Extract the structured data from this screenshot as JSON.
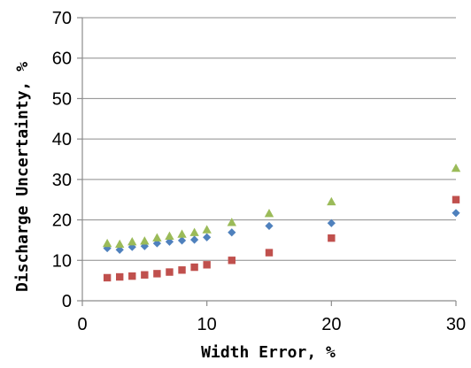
{
  "chart_data": {
    "type": "scatter",
    "title": "",
    "xlabel": "Width Error, %",
    "ylabel": "Discharge Uncertainty, %",
    "xlim": [
      0,
      30
    ],
    "ylim": [
      0,
      70
    ],
    "xticks": [
      0,
      10,
      20,
      30
    ],
    "yticks": [
      0,
      10,
      20,
      30,
      40,
      50,
      60,
      70
    ],
    "grid": "horizontal",
    "legend": "none",
    "series": [
      {
        "marker": "diamond",
        "color": "#4F81BD",
        "x": [
          2,
          3,
          4,
          5,
          6,
          7,
          8,
          9,
          10,
          12,
          15,
          20,
          30
        ],
        "y": [
          13.0,
          12.6,
          13.3,
          13.5,
          14.2,
          14.6,
          14.9,
          15.1,
          15.7,
          16.9,
          18.5,
          19.2,
          21.7
        ]
      },
      {
        "marker": "square",
        "color": "#C0504D",
        "x": [
          2,
          3,
          4,
          5,
          6,
          7,
          8,
          9,
          10,
          12,
          15,
          20,
          30
        ],
        "y": [
          5.7,
          5.9,
          6.1,
          6.4,
          6.7,
          7.1,
          7.6,
          8.3,
          8.9,
          10.0,
          11.9,
          15.5,
          25.0
        ]
      },
      {
        "marker": "triangle",
        "color": "#9BBB59",
        "x": [
          2,
          3,
          4,
          5,
          6,
          7,
          8,
          9,
          10,
          12,
          15,
          20,
          30
        ],
        "y": [
          14.2,
          14.0,
          14.6,
          14.8,
          15.6,
          16.0,
          16.5,
          16.9,
          17.6,
          19.4,
          21.6,
          24.5,
          32.8
        ]
      }
    ]
  }
}
